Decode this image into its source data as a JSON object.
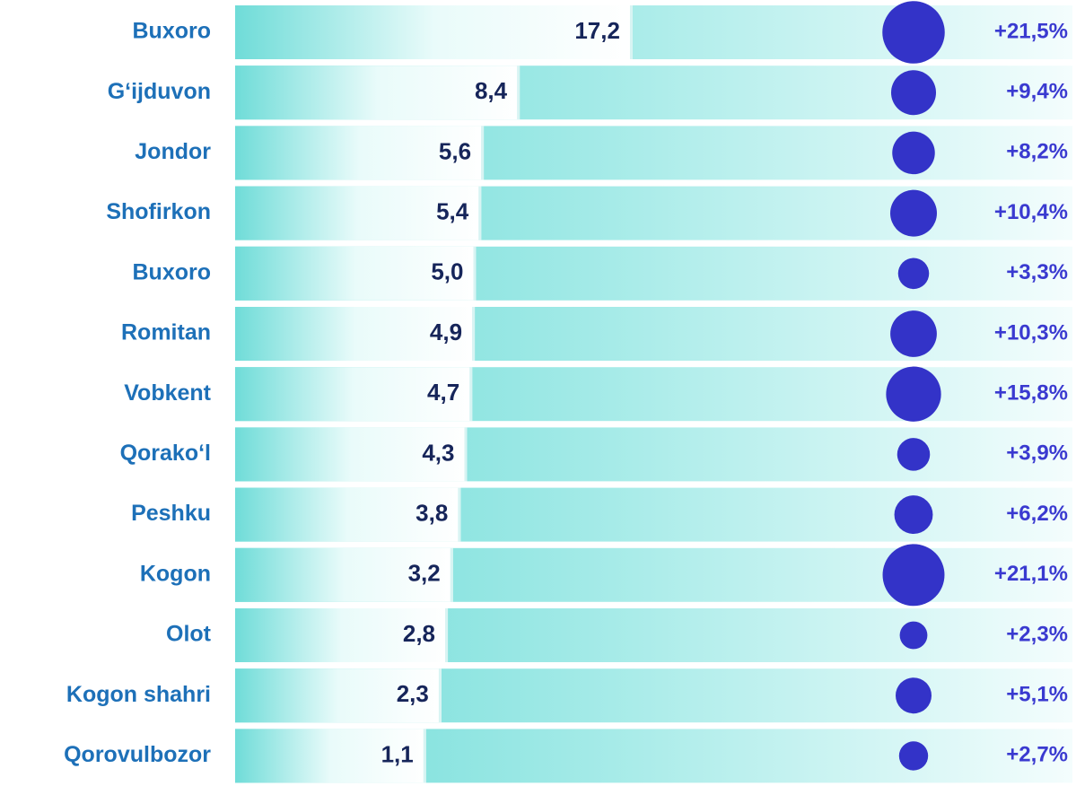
{
  "chart_data": {
    "type": "bar",
    "categories": [
      "Buxoro",
      "G‘ijduvon",
      "Jondor",
      "Shofirkon",
      "Buxoro",
      "Romitan",
      "Vobkent",
      "Qorako‘l",
      "Peshku",
      "Kogon",
      "Olot",
      "Kogon shahri",
      "Qorovulbozor"
    ],
    "values": [
      17.2,
      8.4,
      5.6,
      5.4,
      5.0,
      4.9,
      4.7,
      4.3,
      3.8,
      3.2,
      2.8,
      2.3,
      1.1
    ],
    "value_labels": [
      "17,2",
      "8,4",
      "5,6",
      "5,4",
      "5,0",
      "4,9",
      "4,7",
      "4,3",
      "3,8",
      "3,2",
      "2,8",
      "2,3",
      "1,1"
    ],
    "growth": [
      21.5,
      9.4,
      8.2,
      10.4,
      3.3,
      10.3,
      15.8,
      3.9,
      6.2,
      21.1,
      2.3,
      5.1,
      2.7
    ],
    "growth_labels": [
      "+21,5%",
      "+9,4%",
      "+8,2%",
      "+10,4%",
      "+3,3%",
      "+10,3%",
      "+15,8%",
      "+3,9%",
      "+6,2%",
      "+21,1%",
      "+2,3%",
      "+5,1%",
      "+2,7%"
    ],
    "color": "#6fdcd8",
    "circle_color": "#3333c8",
    "label_color": "#1d70b8",
    "value_color": "#16255a",
    "growth_color": "#3a3ad0"
  }
}
